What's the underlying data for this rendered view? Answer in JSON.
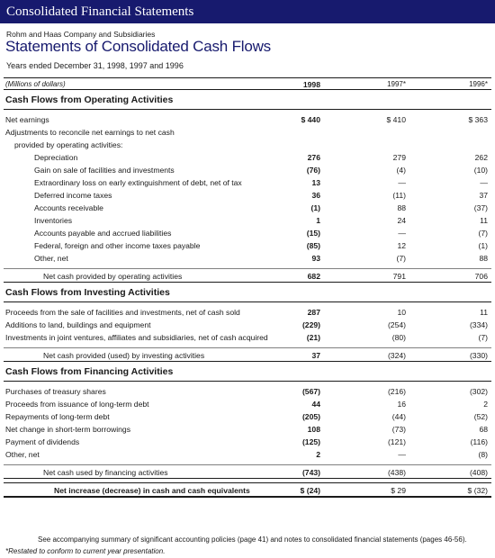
{
  "banner": "Consolidated Financial Statements",
  "company": "Rohm and Haas Company and Subsidiaries",
  "title": "Statements of Consolidated Cash Flows",
  "period": "Years ended December 31, 1998, 1997 and 1996",
  "header": {
    "label": "(Millions of dollars)",
    "y1": "1998",
    "y2": "1997*",
    "y3": "1996*"
  },
  "operating": {
    "title": "Cash Flows from Operating Activities",
    "rows": [
      {
        "label": "Net earnings",
        "v1": "$ 440",
        "v2": "$ 410",
        "v3": "$ 363",
        "level": 0
      },
      {
        "label": "Adjustments to reconcile net earnings to net cash",
        "v1": "",
        "v2": "",
        "v3": "",
        "level": 0
      },
      {
        "label": "provided by operating activities:",
        "v1": "",
        "v2": "",
        "v3": "",
        "level": 1
      },
      {
        "label": "Depreciation",
        "v1": "276",
        "v2": "279",
        "v3": "262",
        "level": 2
      },
      {
        "label": "Gain on sale of facilities and investments",
        "v1": "(76)",
        "v2": "(4)",
        "v3": "(10)",
        "level": 2
      },
      {
        "label": "Extraordinary loss on early extinguishment of debt, net of tax",
        "v1": "13",
        "v2": "—",
        "v3": "—",
        "level": 2
      },
      {
        "label": "Deferred income taxes",
        "v1": "36",
        "v2": "(11)",
        "v3": "37",
        "level": 2
      },
      {
        "label": "Accounts receivable",
        "v1": "(1)",
        "v2": "88",
        "v3": "(37)",
        "level": 2
      },
      {
        "label": "Inventories",
        "v1": "1",
        "v2": "24",
        "v3": "11",
        "level": 2
      },
      {
        "label": "Accounts payable and accrued liabilities",
        "v1": "(15)",
        "v2": "—",
        "v3": "(7)",
        "level": 2
      },
      {
        "label": "Federal, foreign and other income taxes payable",
        "v1": "(85)",
        "v2": "12",
        "v3": "(1)",
        "level": 2
      },
      {
        "label": "Other, net",
        "v1": "93",
        "v2": "(7)",
        "v3": "88",
        "level": 2
      }
    ],
    "total": {
      "label": "Net cash provided by operating activities",
      "v1": "682",
      "v2": "791",
      "v3": "706"
    }
  },
  "investing": {
    "title": "Cash Flows from Investing Activities",
    "rows": [
      {
        "label": "Proceeds from the sale of facilities and investments, net of cash sold",
        "v1": "287",
        "v2": "10",
        "v3": "11",
        "level": 0
      },
      {
        "label": "Additions to land, buildings and equipment",
        "v1": "(229)",
        "v2": "(254)",
        "v3": "(334)",
        "level": 0
      },
      {
        "label": "Investments in joint ventures, affiliates and subsidiaries, net of cash acquired",
        "v1": "(21)",
        "v2": "(80)",
        "v3": "(7)",
        "level": 0
      }
    ],
    "total": {
      "label": "Net cash provided (used) by investing activities",
      "v1": "37",
      "v2": "(324)",
      "v3": "(330)"
    }
  },
  "financing": {
    "title": "Cash Flows from Financing Activities",
    "rows": [
      {
        "label": "Purchases of treasury shares",
        "v1": "(567)",
        "v2": "(216)",
        "v3": "(302)",
        "level": 0
      },
      {
        "label": "Proceeds from issuance of long-term debt",
        "v1": "44",
        "v2": "16",
        "v3": "2",
        "level": 0
      },
      {
        "label": "Repayments of long-term debt",
        "v1": "(205)",
        "v2": "(44)",
        "v3": "(52)",
        "level": 0
      },
      {
        "label": "Net change in short-term borrowings",
        "v1": "108",
        "v2": "(73)",
        "v3": "68",
        "level": 0
      },
      {
        "label": "Payment of dividends",
        "v1": "(125)",
        "v2": "(121)",
        "v3": "(116)",
        "level": 0
      },
      {
        "label": "Other, net",
        "v1": "2",
        "v2": "—",
        "v3": "(8)",
        "level": 0
      }
    ],
    "total": {
      "label": "Net cash used by financing activities",
      "v1": "(743)",
      "v2": "(438)",
      "v3": "(408)"
    }
  },
  "grand": {
    "label": "Net increase (decrease) in cash and cash equivalents",
    "v1": "$ (24)",
    "v2": "$ 29",
    "v3": "$ (32)"
  },
  "footnotes": {
    "line1": "See accompanying summary of significant accounting policies (page 41) and notes to consolidated financial statements (pages 46-56).",
    "line2": "*Restated to conform to current year presentation."
  },
  "colors": {
    "banner_bg": "#171a6e",
    "title": "#171a6e"
  }
}
